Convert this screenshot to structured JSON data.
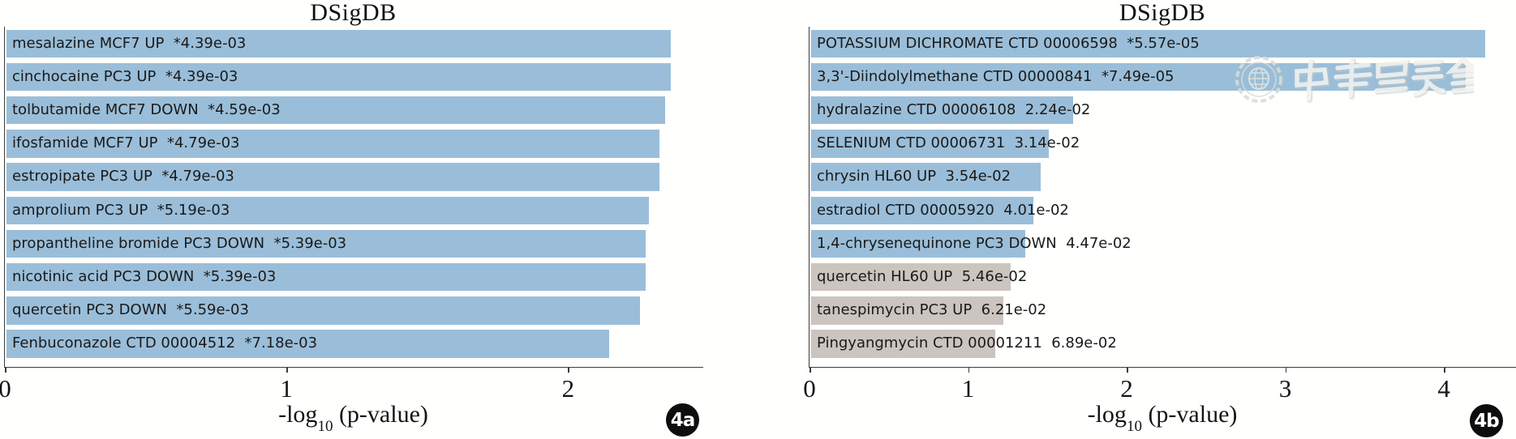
{
  "figure": {
    "background": "#fffffe",
    "watermark": {
      "text": "中華醫學會",
      "description": "chinese-medical-association-seal-and-calligraphy"
    }
  },
  "colors": {
    "bar_significant": "#9abed9",
    "bar_not_significant": "#ccc4bf",
    "axis": "#3c3c3c",
    "label_text": "#1a1a1a",
    "badge_bg": "#0d0d0d",
    "badge_text": "#ffffff"
  },
  "chart_data": [
    {
      "type": "bar",
      "orientation": "horizontal",
      "title": "DSigDB",
      "panel_label": "4a",
      "xlabel": "-log10 (p-value)",
      "xlabel_parts": {
        "pre": "-log",
        "sub": "10",
        "post": " (p-value)"
      },
      "xlim": [
        0,
        2.48
      ],
      "x_ticks": [
        0,
        1,
        2
      ],
      "grid": false,
      "legend": null,
      "categories": [
        "mesalazine MCF7 UP",
        "cinchocaine PC3 UP",
        "tolbutamide MCF7 DOWN",
        "ifosfamide MCF7 UP",
        "estropipate PC3 UP",
        "amprolium PC3 UP",
        "propantheline bromide PC3 DOWN",
        "nicotinic acid PC3 DOWN",
        "quercetin PC3 DOWN",
        "Fenbuconazole CTD 00004512"
      ],
      "p_values": [
        "4.39e-03",
        "4.39e-03",
        "4.59e-03",
        "4.79e-03",
        "4.79e-03",
        "5.19e-03",
        "5.39e-03",
        "5.39e-03",
        "5.59e-03",
        "7.18e-03"
      ],
      "values": [
        2.36,
        2.36,
        2.34,
        2.32,
        2.32,
        2.28,
        2.27,
        2.27,
        2.25,
        2.14
      ],
      "significant": [
        true,
        true,
        true,
        true,
        true,
        true,
        true,
        true,
        true,
        true
      ],
      "bar_labels": [
        "mesalazine MCF7 UP  *4.39e-03",
        "cinchocaine PC3 UP  *4.39e-03",
        "tolbutamide MCF7 DOWN  *4.59e-03",
        "ifosfamide MCF7 UP  *4.79e-03",
        "estropipate PC3 UP  *4.79e-03",
        "amprolium PC3 UP  *5.19e-03",
        "propantheline bromide PC3 DOWN  *5.39e-03",
        "nicotinic acid PC3 DOWN  *5.39e-03",
        "quercetin PC3 DOWN  *5.59e-03",
        "Fenbuconazole CTD 00004512  *7.18e-03"
      ]
    },
    {
      "type": "bar",
      "orientation": "horizontal",
      "title": "DSigDB",
      "panel_label": "4b",
      "xlabel": "-log10 (p-value)",
      "xlabel_parts": {
        "pre": "-log",
        "sub": "10",
        "post": " (p-value)"
      },
      "xlim": [
        0,
        4.46
      ],
      "x_ticks": [
        0,
        1,
        2,
        3,
        4
      ],
      "grid": false,
      "legend": null,
      "categories": [
        "POTASSIUM DICHROMATE CTD 00006598",
        "3,3'-Diindolylmethane CTD 00000841",
        "hydralazine CTD 00006108",
        "SELENIUM CTD 00006731",
        "chrysin HL60 UP",
        "estradiol CTD 00005920",
        "1,4-chrysenequinone PC3 DOWN",
        "quercetin HL60 UP",
        "tanespimycin PC3 UP",
        "Pingyangmycin CTD 00001211"
      ],
      "p_values": [
        "5.57e-05",
        "7.49e-05",
        "2.24e-02",
        "3.14e-02",
        "3.54e-02",
        "4.01e-02",
        "4.47e-02",
        "5.46e-02",
        "6.21e-02",
        "6.89e-02"
      ],
      "values": [
        4.25,
        4.13,
        1.65,
        1.5,
        1.45,
        1.4,
        1.35,
        1.26,
        1.21,
        1.16
      ],
      "significant": [
        true,
        true,
        true,
        true,
        true,
        true,
        true,
        false,
        false,
        false
      ],
      "bar_labels": [
        "POTASSIUM DICHROMATE CTD 00006598  *5.57e-05",
        "3,3'-Diindolylmethane CTD 00000841  *7.49e-05",
        "hydralazine CTD 00006108  2.24e-02",
        "SELENIUM CTD 00006731  3.14e-02",
        "chrysin HL60 UP  3.54e-02",
        "estradiol CTD 00005920  4.01e-02",
        "1,4-chrysenequinone PC3 DOWN  4.47e-02",
        "quercetin HL60 UP  5.46e-02",
        "tanespimycin PC3 UP  6.21e-02",
        "Pingyangmycin CTD 00001211  6.89e-02"
      ]
    }
  ]
}
